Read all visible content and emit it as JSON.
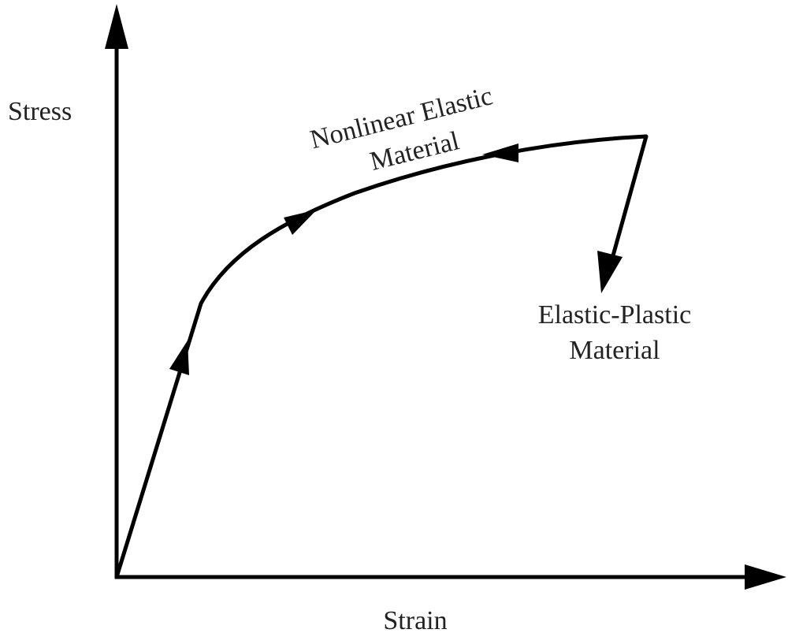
{
  "axes": {
    "y_label": "Stress",
    "x_label": "Strain"
  },
  "annotations": [
    {
      "lines": [
        "Nonlinear Elastic",
        "Material"
      ]
    },
    {
      "lines": [
        "Elastic-Plastic",
        "Material"
      ]
    }
  ]
}
